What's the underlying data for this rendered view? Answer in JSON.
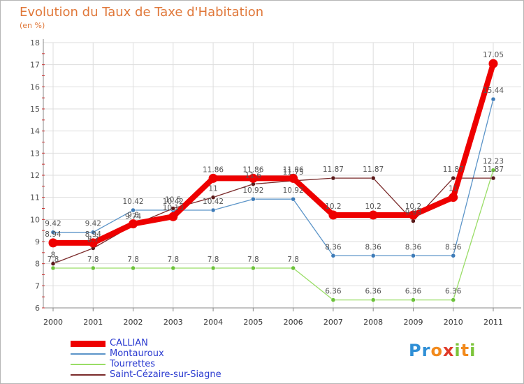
{
  "title": "Evolution du Taux de Taxe d'Habitation",
  "unit_label": "(en %)",
  "logo": {
    "letters": [
      "P",
      "r",
      "o",
      "x",
      "i",
      "t",
      "i"
    ],
    "colors": [
      "#2f8fd6",
      "#2f8fd6",
      "#f28a1c",
      "#e03a2a",
      "#7cc43a",
      "#f28a1c",
      "#7cc43a"
    ]
  },
  "chart_data": {
    "type": "line",
    "x": [
      "2000",
      "2001",
      "2002",
      "2003",
      "2004",
      "2005",
      "2006",
      "2007",
      "2008",
      "2009",
      "2010",
      "2011"
    ],
    "ylim": [
      6,
      18
    ],
    "yticks": [
      "6",
      "7",
      "8",
      "9",
      "10",
      "11",
      "12",
      "13",
      "14",
      "15",
      "16",
      "17",
      "18"
    ],
    "grid": true,
    "legend_position": "bottom-left",
    "series": [
      {
        "name": "CALLIAN",
        "color": "#ee0000",
        "values": [
          8.94,
          8.94,
          9.8,
          10.13,
          11.86,
          11.86,
          11.86,
          10.2,
          10.2,
          10.2,
          11,
          17.05
        ],
        "labels": [
          "8.94",
          "8.94",
          "9.8",
          "10.13",
          "11.86",
          "11.86",
          "11.86",
          "10.2",
          "10.2",
          "10.2",
          "11",
          "17.05"
        ]
      },
      {
        "name": "Montauroux",
        "color": "#5b94c8",
        "values": [
          9.42,
          9.42,
          10.42,
          10.42,
          10.42,
          10.92,
          10.92,
          8.36,
          8.36,
          8.36,
          8.36,
          15.44
        ],
        "labels": [
          "9.42",
          "9.42",
          "10.42",
          "10.42",
          "10.42",
          "10.92",
          "10.92",
          "8.36",
          "8.36",
          "8.36",
          "8.36",
          "15.44"
        ]
      },
      {
        "name": "Tourrettes",
        "color": "#99dd66",
        "values": [
          7.8,
          7.8,
          7.8,
          7.8,
          7.8,
          7.8,
          7.8,
          6.36,
          6.36,
          6.36,
          6.36,
          12.23
        ],
        "labels": [
          "7.8",
          "7.8",
          "7.8",
          "7.8",
          "7.8",
          "7.8",
          "7.8",
          "6.36",
          "6.36",
          "6.36",
          "6.36",
          "12.23"
        ]
      },
      {
        "name": "Saint-Cézaire-sur-Siagne",
        "color": "#7a2a2a",
        "values": [
          8,
          8.7,
          9.74,
          10.5,
          11,
          11.6,
          11.75,
          11.87,
          11.87,
          9.93,
          11.87,
          11.87
        ],
        "labels": [
          "8",
          "8.7",
          "9.74",
          "10.5",
          "11",
          "11.6",
          "11.75",
          "11.87",
          "11.87",
          "9.93",
          "11.87",
          "11.87"
        ]
      }
    ]
  }
}
